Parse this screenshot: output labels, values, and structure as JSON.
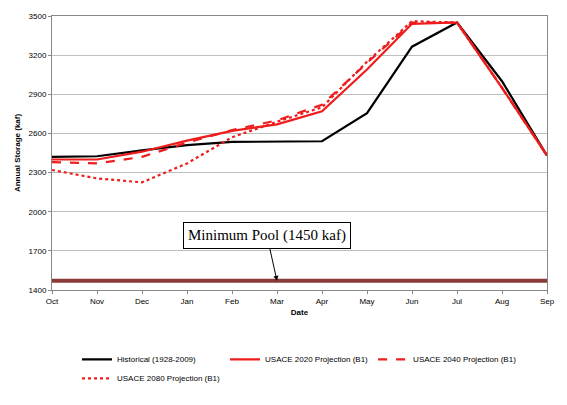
{
  "chart_data": {
    "type": "line",
    "x_label": "Date",
    "y_label": "Annual Storage (kaf)",
    "categories": [
      "Oct",
      "Nov",
      "Dec",
      "Jan",
      "Feb",
      "Mar",
      "Apr",
      "May",
      "Jun",
      "Jul",
      "Aug",
      "Sep"
    ],
    "series": [
      {
        "name": "Historical (1928-2009)",
        "color": "#000000",
        "line_style": "solid",
        "values": [
          2420,
          2425,
          2470,
          2510,
          2535,
          2535,
          2540,
          2755,
          3265,
          3450,
          3000,
          2430
        ]
      },
      {
        "name": "USACE 2020 Projection (B1)",
        "color": "#ee1c1c",
        "line_style": "solid",
        "values": [
          2400,
          2400,
          2460,
          2545,
          2620,
          2670,
          2770,
          3090,
          3440,
          3450,
          2950,
          2430
        ]
      },
      {
        "name": "USACE 2040 Projection (B1)",
        "color": "#ee1c1c",
        "line_style": "dash",
        "values": [
          2380,
          2370,
          2420,
          2530,
          2625,
          2700,
          2820,
          3140,
          3450,
          3450,
          2950,
          2430
        ]
      },
      {
        "name": "USACE 2080 Projection (B1)",
        "color": "#ee1c1c",
        "line_style": "dot",
        "values": [
          2320,
          2255,
          2225,
          2370,
          2570,
          2690,
          2800,
          3150,
          3460,
          3450,
          2950,
          2430
        ]
      }
    ],
    "annotations": [
      {
        "text": "Minimum Pool (1450 kaf)",
        "x": "Mar",
        "y": 1470,
        "color": "#8b3a3a"
      }
    ],
    "ylim": [
      1400,
      3500
    ],
    "yticks": [
      1400,
      1700,
      2000,
      2300,
      2600,
      2900,
      3200,
      3500
    ],
    "grid": true,
    "legend": "bottom"
  }
}
